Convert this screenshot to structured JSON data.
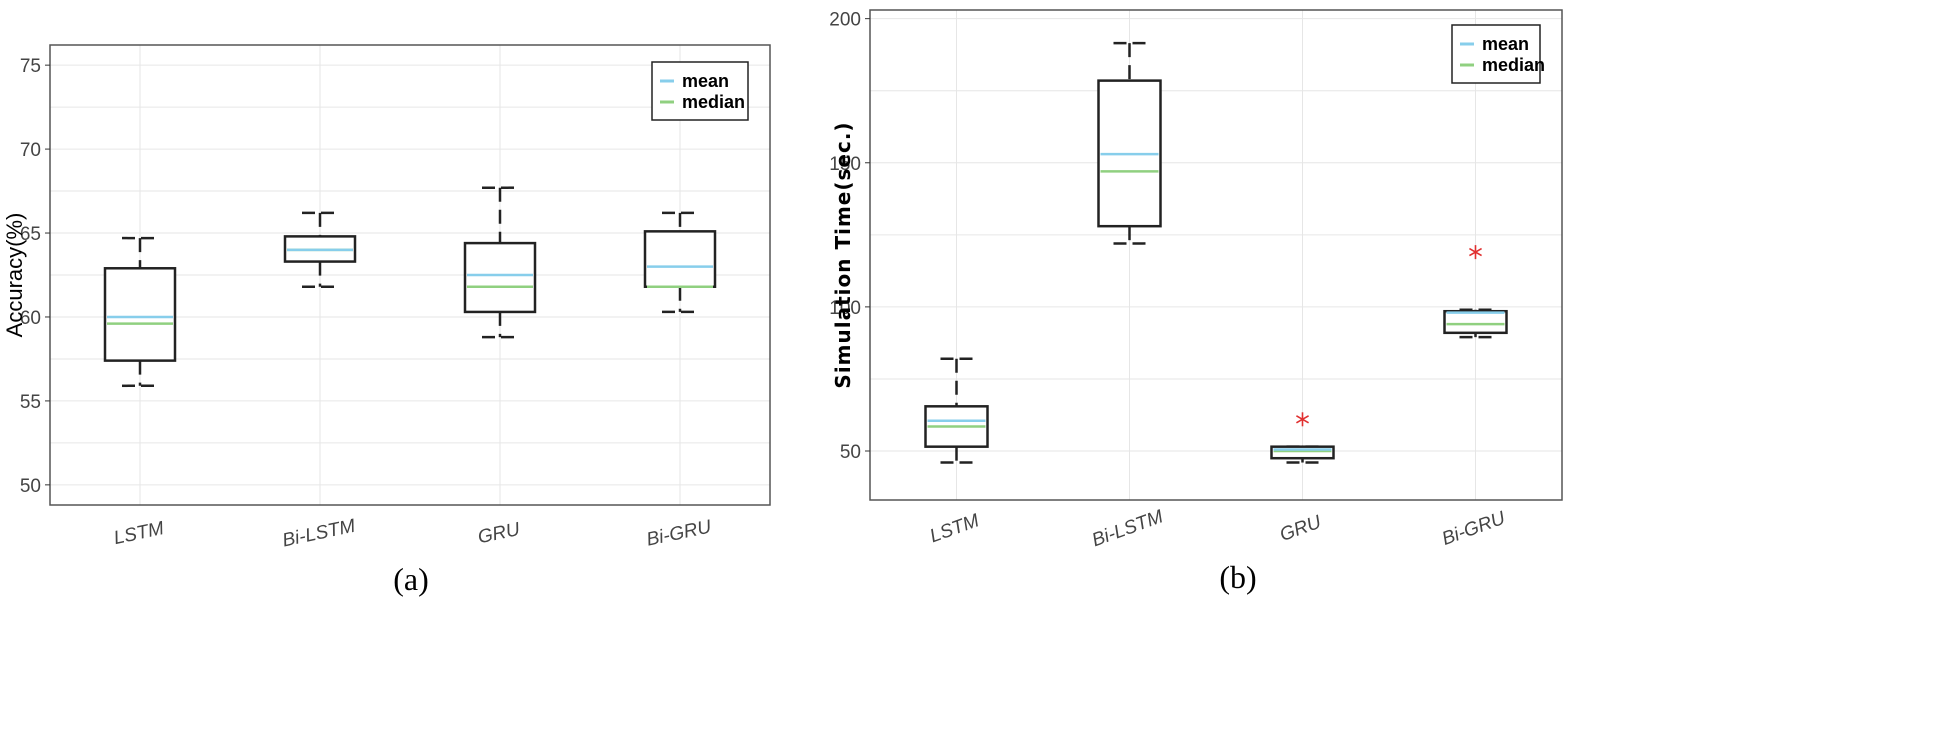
{
  "chart_data": [
    {
      "type": "box",
      "title": "",
      "caption": "(a)",
      "ylabel": "Accuracy(%)",
      "xlabel": "",
      "ylim": [
        48.8,
        76.2
      ],
      "yticks": [
        50,
        55,
        60,
        65,
        70,
        75
      ],
      "grid": true,
      "legend_position": "top-right",
      "legend": [
        {
          "label": "mean",
          "color": "#87CEEB"
        },
        {
          "label": "median",
          "color": "#90D080"
        }
      ],
      "categories": [
        "LSTM",
        "Bi-LSTM",
        "GRU",
        "Bi-GRU"
      ],
      "boxes": [
        {
          "whisker_low": 55.9,
          "q1": 57.4,
          "median": 59.6,
          "mean": 60.0,
          "q3": 62.9,
          "whisker_high": 64.7,
          "outliers": []
        },
        {
          "whisker_low": 61.8,
          "q1": 63.3,
          "median": 64.0,
          "mean": 64.0,
          "q3": 64.8,
          "whisker_high": 66.2,
          "outliers": []
        },
        {
          "whisker_low": 58.8,
          "q1": 60.3,
          "median": 61.8,
          "mean": 62.5,
          "q3": 64.4,
          "whisker_high": 67.7,
          "outliers": []
        },
        {
          "whisker_low": 60.3,
          "q1": 61.8,
          "median": 61.8,
          "mean": 63.0,
          "q3": 65.1,
          "whisker_high": 66.2,
          "outliers": []
        }
      ]
    },
    {
      "type": "box",
      "title": "",
      "caption": "(b)",
      "ylabel": "Simulation Time(sec.)",
      "xlabel": "",
      "ylim": [
        33,
        203
      ],
      "yticks": [
        50,
        100,
        150,
        200
      ],
      "grid": true,
      "legend_position": "top-right",
      "legend": [
        {
          "label": "mean",
          "color": "#87CEEB"
        },
        {
          "label": "median",
          "color": "#90D080"
        }
      ],
      "categories": [
        "LSTM",
        "Bi-LSTM",
        "GRU",
        "Bi-GRU"
      ],
      "boxes": [
        {
          "whisker_low": 46,
          "q1": 51.5,
          "median": 58.5,
          "mean": 60.5,
          "q3": 65.5,
          "whisker_high": 82,
          "outliers": []
        },
        {
          "whisker_low": 122,
          "q1": 128,
          "median": 147,
          "mean": 153,
          "q3": 178.5,
          "whisker_high": 191.5,
          "outliers": []
        },
        {
          "whisker_low": 46,
          "q1": 47.5,
          "median": 50,
          "mean": 50.5,
          "q3": 51.5,
          "whisker_high": 51.5,
          "outliers": [
            61
          ]
        },
        {
          "whisker_low": 89.5,
          "q1": 91,
          "median": 94,
          "mean": 98,
          "q3": 98.5,
          "whisker_high": 99,
          "outliers": [
            119
          ]
        }
      ]
    }
  ],
  "colors": {
    "box_stroke": "#222222",
    "grid": "#e6e6e6",
    "outlier": "#e03030",
    "frame": "#555555"
  }
}
